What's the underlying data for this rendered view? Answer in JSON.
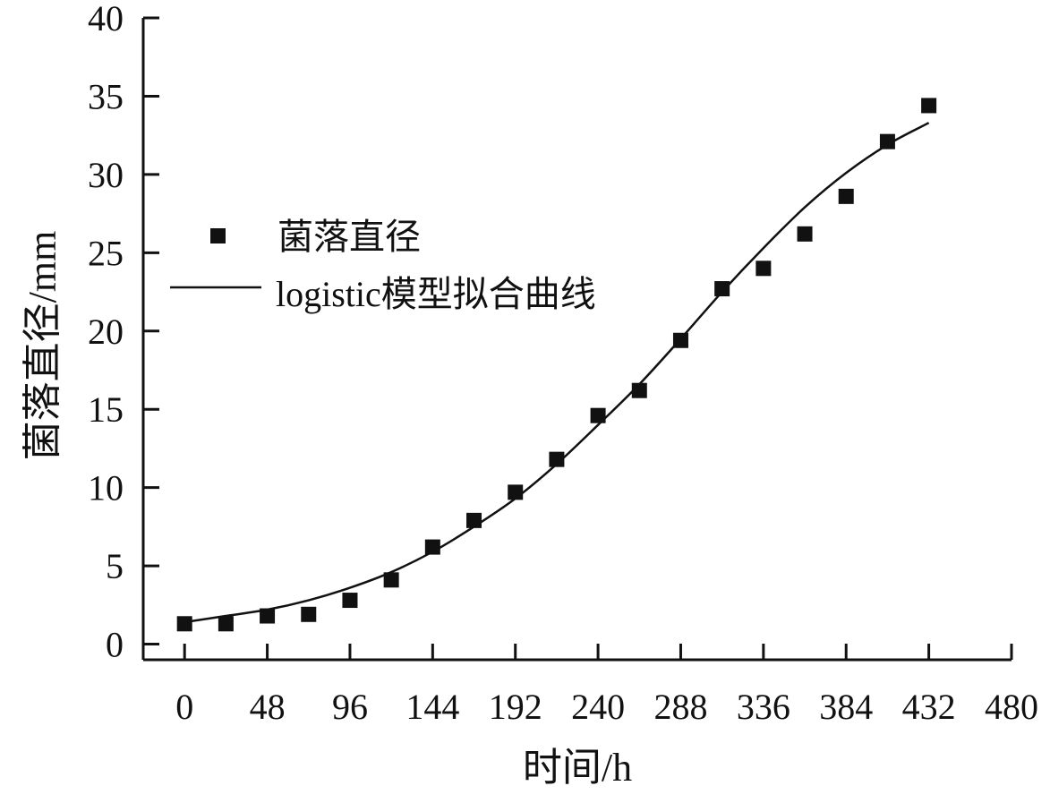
{
  "chart_data": {
    "type": "scatter",
    "xlabel": "时间/h",
    "ylabel": "菌落直径/mm",
    "xlim": [
      -24,
      480
    ],
    "ylim": [
      -1,
      40
    ],
    "xticks": [
      0,
      48,
      96,
      144,
      192,
      240,
      288,
      336,
      384,
      432,
      480
    ],
    "yticks": [
      0,
      5,
      10,
      15,
      20,
      25,
      30,
      35,
      40
    ],
    "xtick_labels": [
      "0",
      "48",
      "96",
      "144",
      "192",
      "240",
      "288",
      "336",
      "384",
      "432",
      "480"
    ],
    "ytick_labels": [
      "0",
      "5",
      "10",
      "15",
      "20",
      "25",
      "30",
      "35",
      "40"
    ],
    "grid": false,
    "legend_position": "upper-left",
    "series": [
      {
        "name": "菌落直径",
        "kind": "scatter",
        "marker": "square",
        "color": "#111111",
        "x": [
          0,
          24,
          48,
          72,
          96,
          120,
          144,
          168,
          192,
          216,
          240,
          264,
          288,
          312,
          336,
          360,
          384,
          408,
          432
        ],
        "y": [
          1.3,
          1.3,
          1.8,
          1.9,
          2.8,
          4.1,
          6.2,
          7.9,
          9.7,
          11.8,
          14.6,
          16.2,
          19.4,
          22.7,
          24.0,
          26.2,
          28.6,
          32.1,
          34.4
        ]
      },
      {
        "name": "logistic模型拟合曲线",
        "kind": "line",
        "color": "#111111",
        "x": [
          0,
          24,
          48,
          72,
          96,
          120,
          144,
          168,
          192,
          216,
          240,
          264,
          288,
          312,
          336,
          360,
          384,
          408,
          432
        ],
        "y": [
          1.4,
          1.8,
          2.2,
          2.8,
          3.6,
          4.6,
          5.9,
          7.5,
          9.3,
          11.5,
          14.0,
          16.6,
          19.5,
          22.5,
          25.3,
          27.9,
          30.1,
          31.9,
          33.3
        ]
      }
    ]
  }
}
